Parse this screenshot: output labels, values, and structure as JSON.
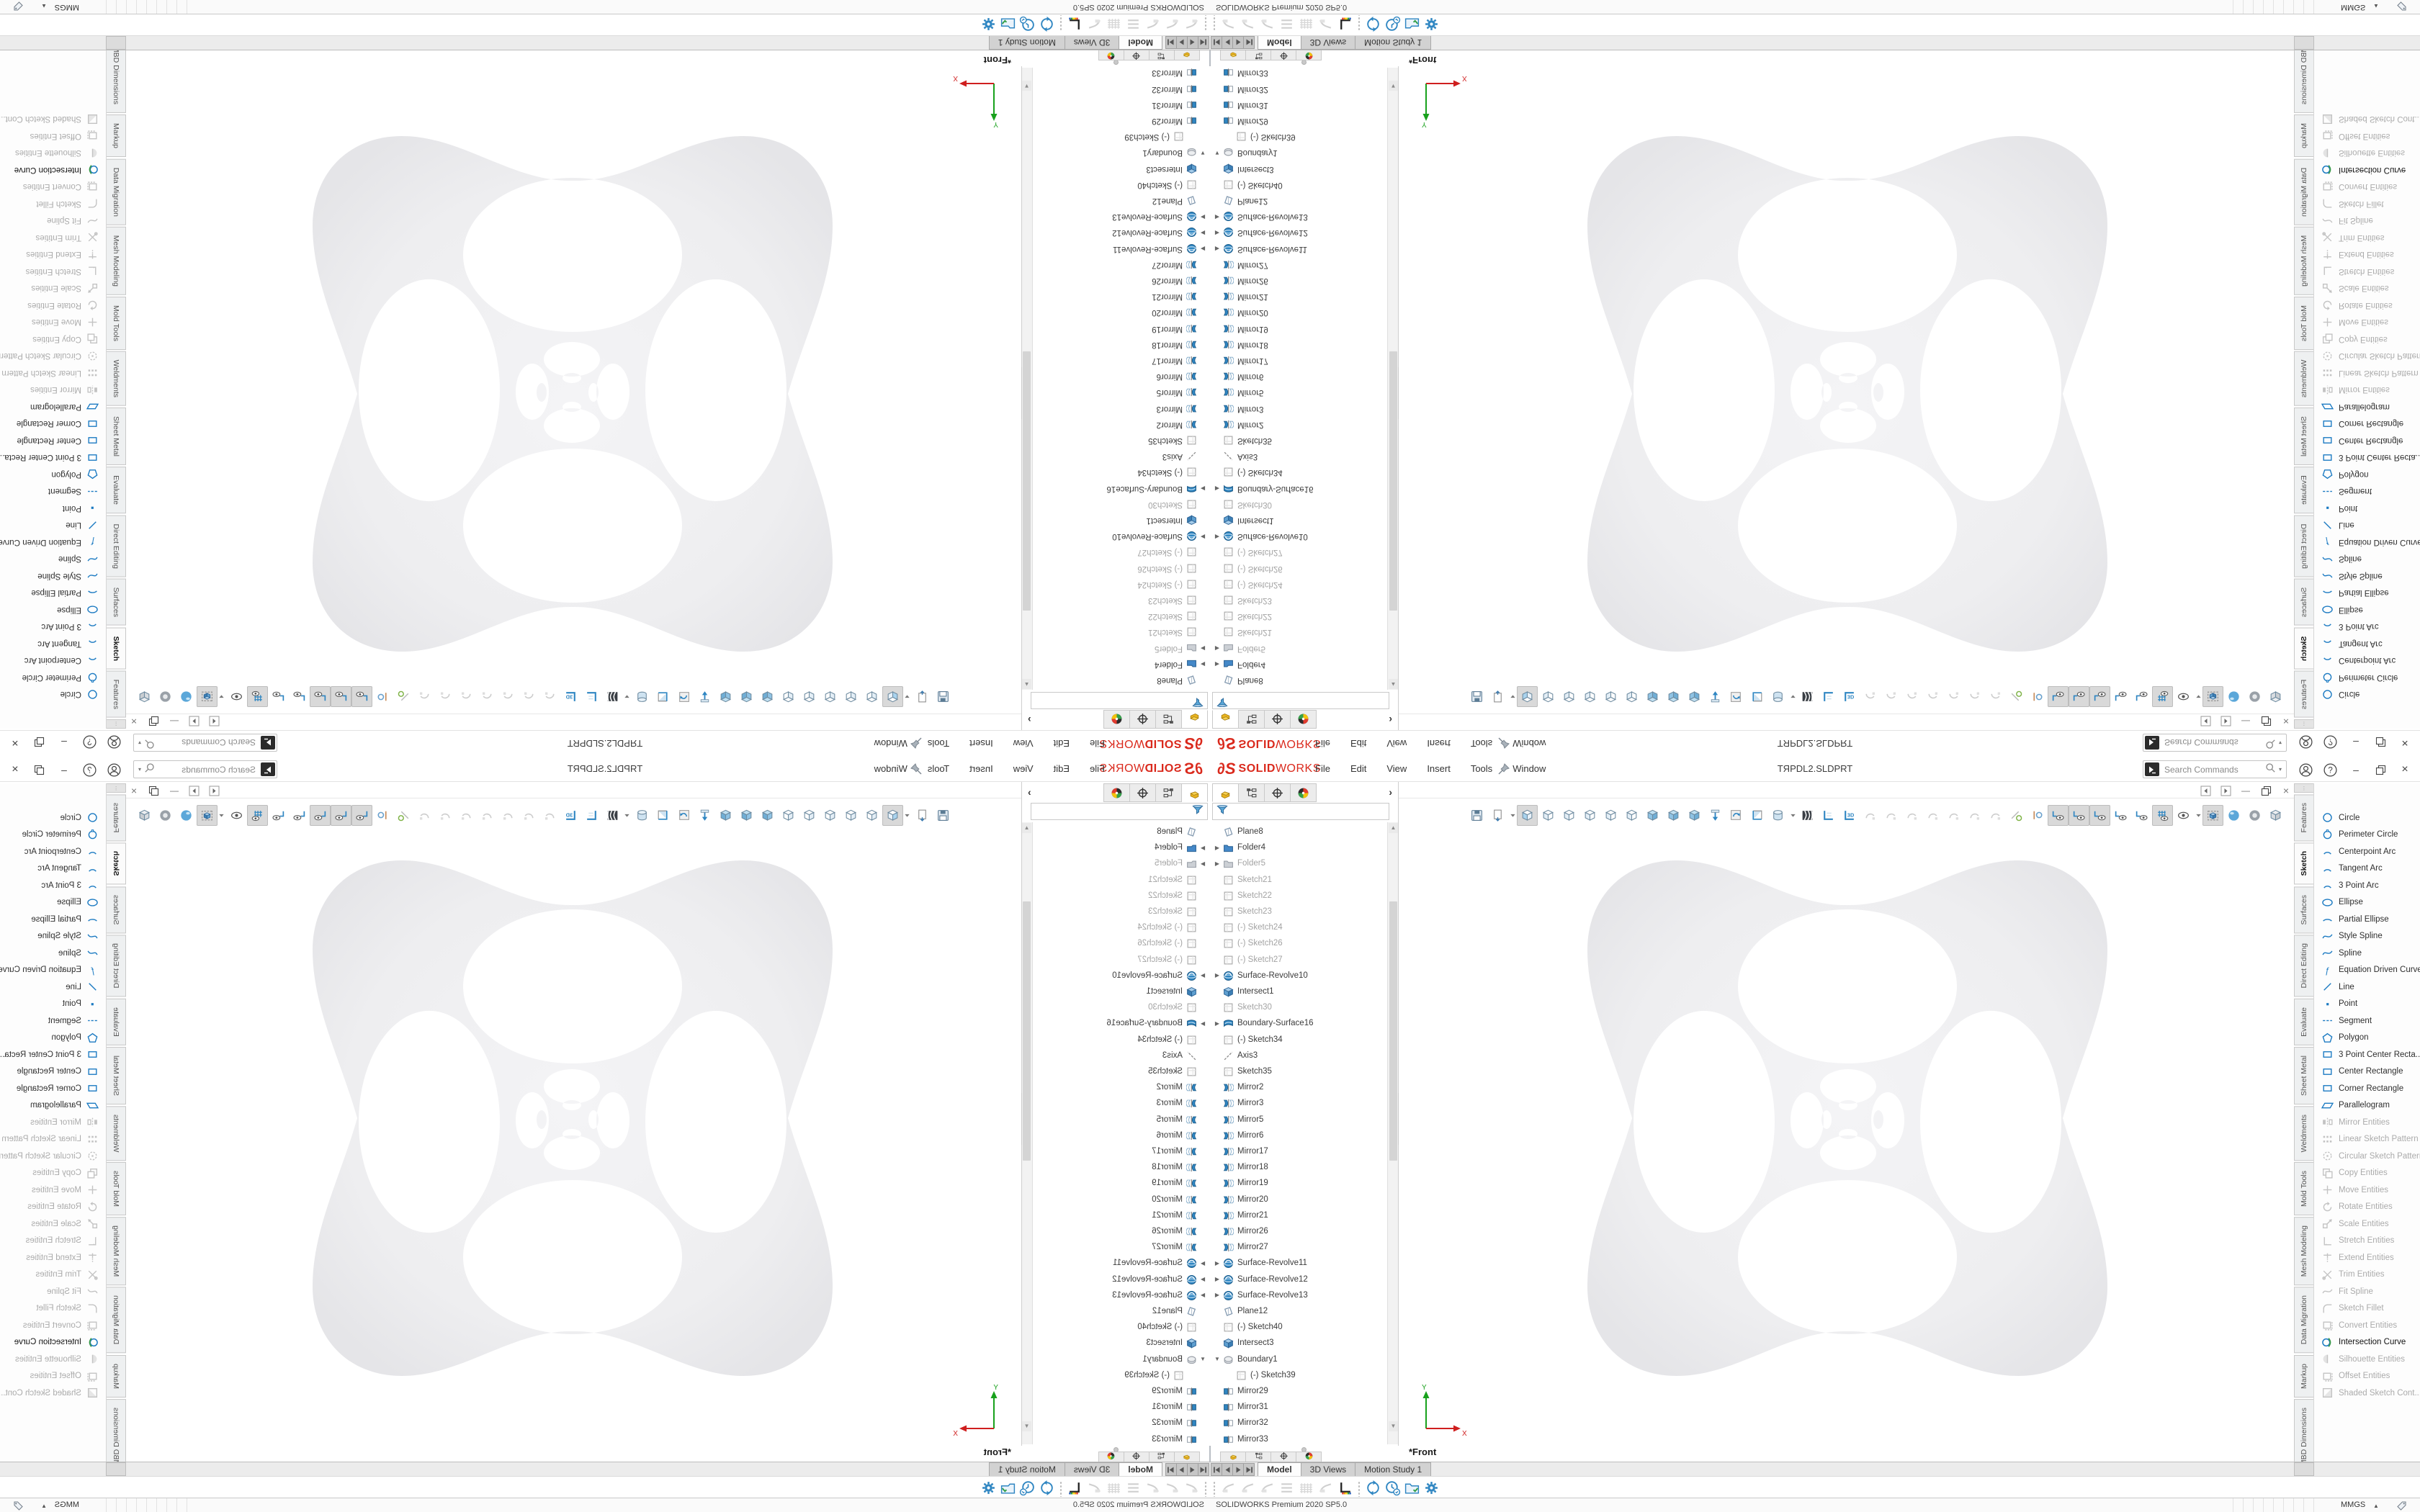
{
  "colors": {
    "brand_red": "#da291c",
    "accent_blue": "#1b7ac2",
    "disabled_gray": "#b5b5b5",
    "canvas_shape": "#ededef"
  },
  "titlebar": {
    "logo_mark": "∂S",
    "logo_bold": "SOLID",
    "logo_light": "WORKS",
    "menus": [
      "File",
      "Edit",
      "View",
      "Insert",
      "Tools",
      "Window"
    ],
    "title": "TЯPDL2.SLDPRT",
    "search_placeholder": "Search Commands"
  },
  "manager_tabs": [
    {
      "icon": "featuremanager-part-icon",
      "selected": true
    },
    {
      "icon": "propertymanager-tree-icon"
    },
    {
      "icon": "configurationmanager-target-icon"
    },
    {
      "icon": "displaymanager-ball-icon"
    }
  ],
  "tree": {
    "items": [
      {
        "label": "Plane8",
        "icon": "plane"
      },
      {
        "label": "Folder4",
        "icon": "folderB",
        "arrow": "r"
      },
      {
        "label": "Folder5",
        "icon": "folderG",
        "arrow": "r",
        "gray": true
      },
      {
        "label": "Sketch21",
        "icon": "sketch",
        "gray": true
      },
      {
        "label": "Sketch22",
        "icon": "sketch",
        "gray": true
      },
      {
        "label": "Sketch23",
        "icon": "sketch",
        "gray": true
      },
      {
        "label": "(-) Sketch24",
        "icon": "sketch",
        "gray": true
      },
      {
        "label": "(-) Sketch26",
        "icon": "sketch",
        "gray": true
      },
      {
        "label": "(-) Sketch27",
        "icon": "sketch",
        "gray": true
      },
      {
        "label": "Surface-Revolve10",
        "icon": "revolve",
        "arrow": "r"
      },
      {
        "label": "Intersect1",
        "icon": "intersect"
      },
      {
        "label": "Sketch30",
        "icon": "sketch",
        "gray": true
      },
      {
        "label": "Boundary-Surface16",
        "icon": "bsurf",
        "arrow": "r"
      },
      {
        "label": "(-) Sketch34",
        "icon": "sketch"
      },
      {
        "label": "Axis3",
        "icon": "axis"
      },
      {
        "label": "Sketch35",
        "icon": "sketch"
      },
      {
        "label": "Mirror2",
        "icon": "msurf"
      },
      {
        "label": "Mirror3",
        "icon": "msurf"
      },
      {
        "label": "Mirror5",
        "icon": "msurf"
      },
      {
        "label": "Mirror6",
        "icon": "msurf"
      },
      {
        "label": "Mirror17",
        "icon": "msurf"
      },
      {
        "label": "Mirror18",
        "icon": "msurf"
      },
      {
        "label": "Mirror19",
        "icon": "msurf"
      },
      {
        "label": "Mirror20",
        "icon": "msurf"
      },
      {
        "label": "Mirror21",
        "icon": "msurf"
      },
      {
        "label": "Mirror26",
        "icon": "msurf"
      },
      {
        "label": "Mirror27",
        "icon": "msurf"
      },
      {
        "label": "Surface-Revolve11",
        "icon": "revolve",
        "arrow": "r"
      },
      {
        "label": "Surface-Revolve12",
        "icon": "revolve",
        "arrow": "r"
      },
      {
        "label": "Surface-Revolve13",
        "icon": "revolve",
        "arrow": "r"
      },
      {
        "label": "Plane12",
        "icon": "plane"
      },
      {
        "label": "(-) Sketch40",
        "icon": "sketch"
      },
      {
        "label": "Intersect3",
        "icon": "intersect"
      },
      {
        "label": "Boundary1",
        "icon": "boundary",
        "arrow": "d"
      },
      {
        "label": "(-) Sketch39",
        "icon": "sketch",
        "indent": 1
      },
      {
        "label": "Mirror29",
        "icon": "msolid"
      },
      {
        "label": "Mirror31",
        "icon": "msolid"
      },
      {
        "label": "Mirror32",
        "icon": "msolid"
      },
      {
        "label": "Mirror33",
        "icon": "msolid"
      }
    ]
  },
  "headsup": [
    {
      "n": "save-icon",
      "g": "save"
    },
    {
      "n": "reload-document-icon",
      "g": "doc"
    },
    {
      "n": "dropdown-caret-icon",
      "g": "caret"
    },
    {
      "n": "view-front-icon",
      "g": "cubeF",
      "active": true
    },
    {
      "n": "view-back-icon",
      "g": "cubeW"
    },
    {
      "n": "view-left-icon",
      "g": "cubeW"
    },
    {
      "n": "view-right-icon",
      "g": "cubeW"
    },
    {
      "n": "view-top-icon",
      "g": "cubeW"
    },
    {
      "n": "view-bottom-icon",
      "g": "cubeW"
    },
    {
      "n": "view-isometric-icon",
      "g": "cubeS"
    },
    {
      "n": "view-dimetric-icon",
      "g": "cubeS"
    },
    {
      "n": "view-trimetric-icon",
      "g": "cubeS"
    },
    {
      "n": "normal-to-icon",
      "g": "arrowN"
    },
    {
      "n": "update-view-icon",
      "g": "update"
    },
    {
      "n": "section-view-icon",
      "g": "section"
    },
    {
      "n": "display-style-icon",
      "g": "dstyle"
    },
    {
      "n": "dropdown-caret-icon",
      "g": "caret"
    },
    {
      "n": "zebra-stripes-icon",
      "g": "zebra"
    },
    {
      "n": "sketch-grid-icon",
      "g": "cornerL"
    },
    {
      "n": "sketch-3d-icon",
      "g": "sk3d"
    },
    {
      "n": "smart-dimension-ghost-icon",
      "g": "ghost"
    },
    {
      "n": "relations-ghost-icon",
      "g": "ghost"
    },
    {
      "n": "curvature-ghost-icon",
      "g": "ghost"
    },
    {
      "n": "fillet-ghost-icon",
      "g": "ghost"
    },
    {
      "n": "trim-ghost-icon",
      "g": "ghost"
    },
    {
      "n": "arc-ghost-icon",
      "g": "ghost"
    },
    {
      "n": "spline-ghost-icon",
      "g": "ghost"
    },
    {
      "n": "measure-icon",
      "g": "meas"
    },
    {
      "n": "dof-icon",
      "g": "mate"
    },
    {
      "n": "hide-sketches-icon",
      "g": "eyeI",
      "active": true
    },
    {
      "n": "hide-splines-icon",
      "g": "eyeI",
      "active": true
    },
    {
      "n": "hide-points-icon",
      "g": "eyeI",
      "active": true
    },
    {
      "n": "hide-planes-icon",
      "g": "eyeI"
    },
    {
      "n": "hide-axes-icon",
      "g": "eyeI"
    },
    {
      "n": "hide-grid-icon",
      "g": "eyeG",
      "active": true
    },
    {
      "n": "hide-all-types-icon",
      "g": "eye"
    },
    {
      "n": "dropdown-caret-icon",
      "g": "caret"
    },
    {
      "n": "filter-display-icon",
      "g": "fbox",
      "active": true
    },
    {
      "n": "appearance-icon",
      "g": "sphere"
    },
    {
      "n": "scene-icon",
      "g": "ball"
    },
    {
      "n": "camera-cube-icon",
      "g": "cubeP"
    }
  ],
  "right_tabs": [
    {
      "label": "Features"
    },
    {
      "label": "Sketch",
      "active": true
    },
    {
      "label": "Surfaces"
    },
    {
      "label": "Direct Editing"
    },
    {
      "label": "Evaluate"
    },
    {
      "label": "Sheet Metal"
    },
    {
      "label": "Weldments"
    },
    {
      "label": "Mold Tools"
    },
    {
      "label": "Mesh Modeling"
    },
    {
      "label": "Data Migration"
    },
    {
      "label": "Markup"
    },
    {
      "label": "MBD Dimensions"
    }
  ],
  "tools": [
    {
      "label": "Circle",
      "g": "circle",
      "state": "on"
    },
    {
      "label": "Perimeter Circle",
      "g": "circle2",
      "state": "on"
    },
    {
      "label": "Centerpoint Arc",
      "g": "arc",
      "state": "on"
    },
    {
      "label": "Tangent Arc",
      "g": "arc",
      "state": "on"
    },
    {
      "label": "3 Point Arc",
      "g": "arc",
      "state": "on"
    },
    {
      "label": "Ellipse",
      "g": "ellipse",
      "state": "on"
    },
    {
      "label": "Partial Ellipse",
      "g": "arcE",
      "state": "on"
    },
    {
      "label": "Style Spline",
      "g": "wave",
      "state": "on"
    },
    {
      "label": "Spline",
      "g": "wave",
      "state": "on"
    },
    {
      "label": "Equation Driven Curve",
      "g": "fx",
      "state": "on"
    },
    {
      "label": "Line",
      "g": "slash",
      "state": "on"
    },
    {
      "label": "Point",
      "g": "dot",
      "state": "on"
    },
    {
      "label": "Segment",
      "g": "dashes",
      "state": "on"
    },
    {
      "label": "Polygon",
      "g": "poly",
      "state": "on"
    },
    {
      "label": "3 Point Center Recta...",
      "g": "rect",
      "state": "on"
    },
    {
      "label": "Center Rectangle",
      "g": "rect",
      "state": "on"
    },
    {
      "label": "Corner Rectangle",
      "g": "rect",
      "state": "on"
    },
    {
      "label": "Parallelogram",
      "g": "para",
      "state": "on"
    },
    {
      "label": "Mirror Entities",
      "g": "mirror",
      "state": "off"
    },
    {
      "label": "Linear Sketch Pattern",
      "g": "grid",
      "state": "off"
    },
    {
      "label": "Circular Sketch Pattern",
      "g": "cpat",
      "state": "off"
    },
    {
      "label": "Copy Entities",
      "g": "copy",
      "state": "off"
    },
    {
      "label": "Move Entities",
      "g": "move",
      "state": "off"
    },
    {
      "label": "Rotate Entities",
      "g": "rot",
      "state": "off"
    },
    {
      "label": "Scale Entities",
      "g": "scl",
      "state": "off"
    },
    {
      "label": "Stretch Entities",
      "g": "str",
      "state": "off"
    },
    {
      "label": "Extend Entities",
      "g": "ext",
      "state": "off"
    },
    {
      "label": "Trim Entities",
      "g": "trim",
      "state": "off"
    },
    {
      "label": "Fit Spline",
      "g": "wave",
      "state": "off"
    },
    {
      "label": "Sketch Fillet",
      "g": "fillet",
      "state": "off"
    },
    {
      "label": "Convert Entities",
      "g": "conv",
      "state": "off"
    },
    {
      "label": "Intersection Curve",
      "g": "inter",
      "state": "hl"
    },
    {
      "label": "Silhouette Entities",
      "g": "sil",
      "state": "off"
    },
    {
      "label": "Offset Entities",
      "g": "conv",
      "state": "off"
    },
    {
      "label": "Shaded Sketch Cont...",
      "g": "shade",
      "state": "off"
    }
  ],
  "canvas": {
    "view_label": "*Front",
    "axis_x": "X",
    "axis_y": "Y"
  },
  "bottom": {
    "tabs": [
      {
        "label": "Model",
        "active": true
      },
      {
        "label": "3D Views"
      },
      {
        "label": "Motion Study 1"
      }
    ],
    "left_icons": [
      {
        "n": "note-ghost-icon",
        "g": "bghost"
      },
      {
        "n": "layers-ghost-icon",
        "g": "bghost"
      },
      {
        "n": "eraser-ghost-icon",
        "g": "bghost"
      },
      {
        "n": "lines-ghost-icon",
        "g": "blines"
      },
      {
        "n": "hatch-ghost-icon",
        "g": "bhatch"
      },
      {
        "n": "reorder-ghost-icon",
        "g": "bghost"
      },
      {
        "n": "axis-chart-icon",
        "g": "chart"
      }
    ],
    "right_icons": [
      {
        "n": "sync-settings-icon",
        "g": "sync"
      },
      {
        "n": "schedule-icon",
        "g": "clock"
      },
      {
        "n": "folder-check-icon",
        "g": "folderc"
      },
      {
        "n": "settings-gear-icon",
        "g": "gear"
      }
    ],
    "status_left": "SOLIDWORKS Premium 2020 SP5.0",
    "units": "MMGS"
  }
}
